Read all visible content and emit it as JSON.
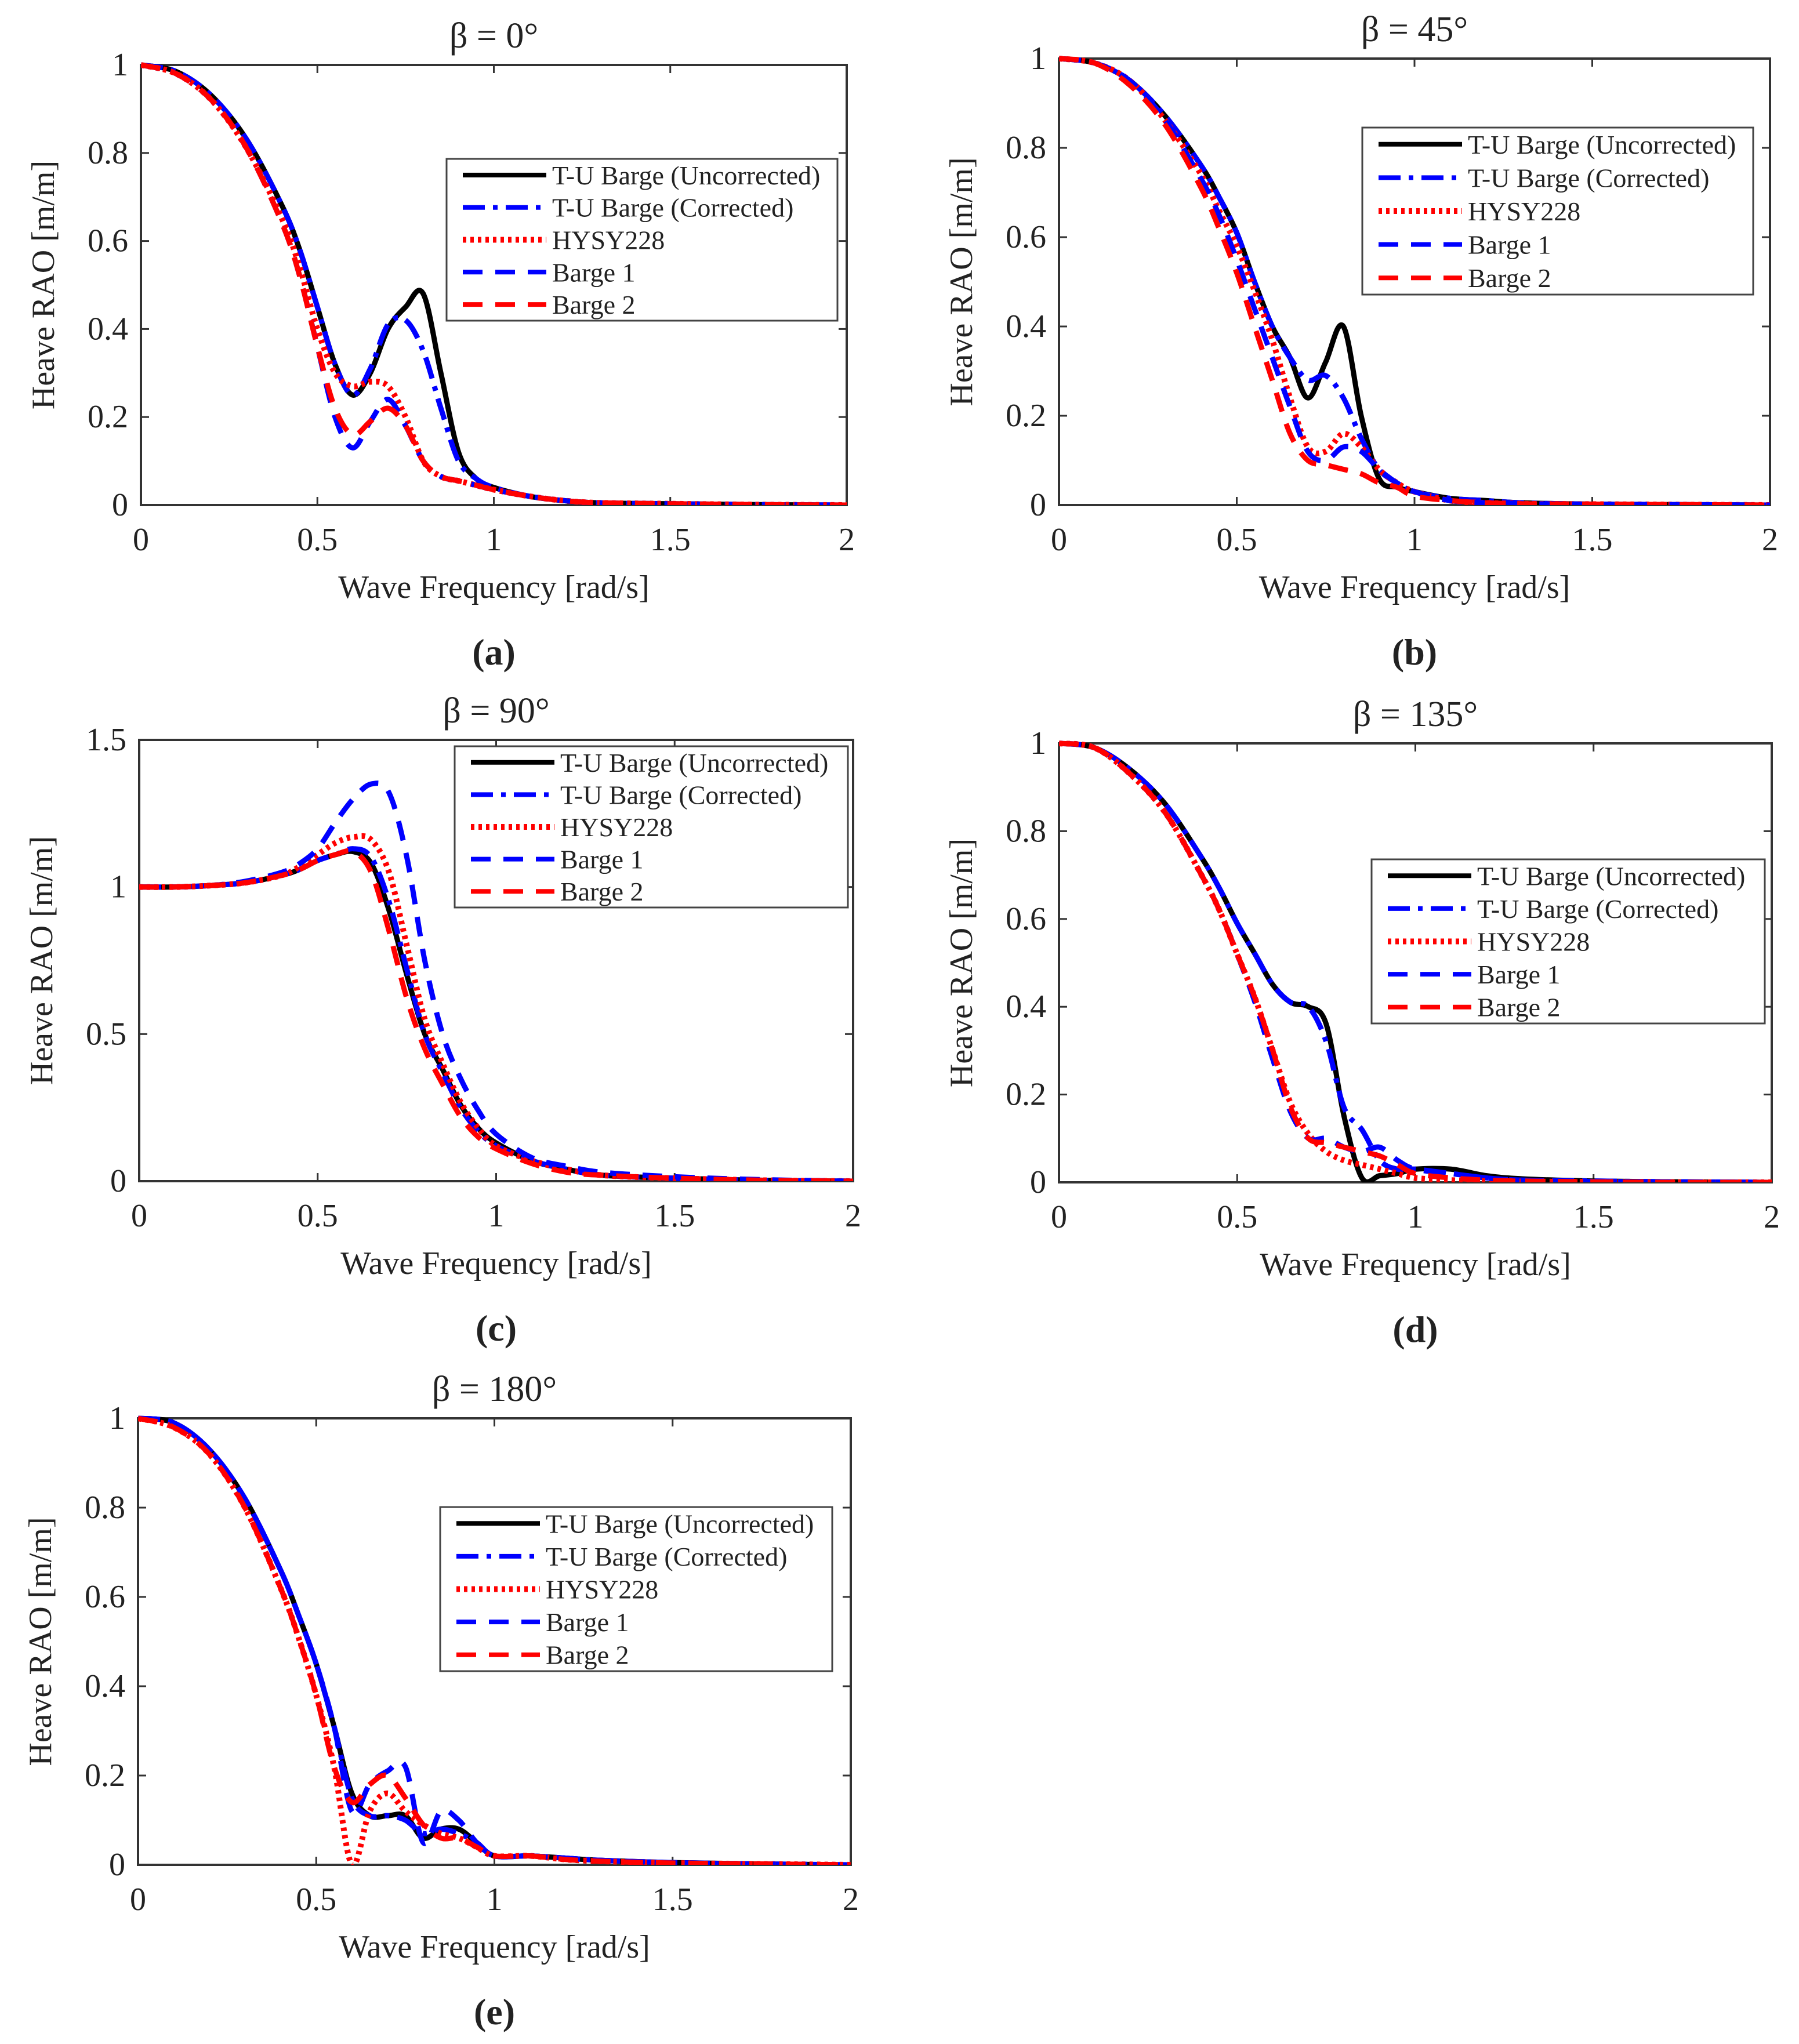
{
  "x_common": [
    0,
    0.1,
    0.2,
    0.3,
    0.4,
    0.45,
    0.5,
    0.55,
    0.6,
    0.65,
    0.7,
    0.75,
    0.8,
    0.85,
    0.9,
    0.95,
    1.0,
    1.1,
    1.2,
    1.3,
    1.5,
    1.75,
    2.0
  ],
  "styles": {
    "T-U Barge (Uncorrected)": {
      "color": "#000000",
      "dash": "solid"
    },
    "T-U Barge (Corrected)": {
      "color": "#0000ff",
      "dash": "dash-dot"
    },
    "HYSY228": {
      "color": "#ff0000",
      "dash": "dotted"
    },
    "Barge 1": {
      "color": "#0000ff",
      "dash": "dashed"
    },
    "Barge 2": {
      "color": "#ff0000",
      "dash": "dashed"
    }
  },
  "chart_data": [
    {
      "type": "line",
      "panel_label": "(a)",
      "title": "β = 0°",
      "xlabel": "Wave Frequency [rad/s]",
      "ylabel": "Heave RAO [m/m]",
      "xlim": [
        0,
        2
      ],
      "ylim": [
        0,
        1
      ],
      "xticks": [
        "0",
        "0.5",
        "1",
        "1.5",
        "2"
      ],
      "yticks": [
        "0",
        "0.2",
        "0.4",
        "0.6",
        "0.8",
        "1"
      ],
      "legend": "top-right",
      "grid": false,
      "series": [
        {
          "name": "T-U Barge (Uncorrected)",
          "values": [
            1,
            0.985,
            0.93,
            0.83,
            0.68,
            0.58,
            0.45,
            0.32,
            0.25,
            0.3,
            0.4,
            0.45,
            0.48,
            0.3,
            0.12,
            0.06,
            0.04,
            0.02,
            0.01,
            0.005,
            0.003,
            0.001,
            0
          ]
        },
        {
          "name": "T-U Barge (Corrected)",
          "values": [
            1,
            0.985,
            0.93,
            0.83,
            0.68,
            0.58,
            0.45,
            0.32,
            0.25,
            0.31,
            0.41,
            0.42,
            0.35,
            0.22,
            0.1,
            0.06,
            0.04,
            0.02,
            0.01,
            0.005,
            0.003,
            0.001,
            0
          ]
        },
        {
          "name": "HYSY228",
          "values": [
            1,
            0.98,
            0.92,
            0.81,
            0.65,
            0.54,
            0.4,
            0.3,
            0.27,
            0.28,
            0.27,
            0.2,
            0.1,
            0.065,
            0.055,
            0.045,
            0.035,
            0.02,
            0.01,
            0.005,
            0.003,
            0.001,
            0
          ]
        },
        {
          "name": "Barge 1",
          "values": [
            1,
            0.98,
            0.92,
            0.81,
            0.64,
            0.52,
            0.36,
            0.2,
            0.13,
            0.19,
            0.24,
            0.18,
            0.1,
            0.065,
            0.055,
            0.045,
            0.035,
            0.02,
            0.01,
            0.005,
            0.003,
            0.001,
            0
          ]
        },
        {
          "name": "Barge 2",
          "values": [
            1,
            0.98,
            0.92,
            0.81,
            0.64,
            0.52,
            0.36,
            0.22,
            0.16,
            0.19,
            0.22,
            0.18,
            0.1,
            0.065,
            0.055,
            0.045,
            0.035,
            0.02,
            0.01,
            0.005,
            0.003,
            0.001,
            0
          ]
        }
      ]
    },
    {
      "type": "line",
      "panel_label": "(b)",
      "title": "β = 45°",
      "xlabel": "Wave Frequency [rad/s]",
      "ylabel": "Heave RAO [m/m]",
      "xlim": [
        0,
        2
      ],
      "ylim": [
        0,
        1
      ],
      "xticks": [
        "0",
        "0.5",
        "1",
        "1.5",
        "2"
      ],
      "yticks": [
        "0",
        "0.2",
        "0.4",
        "0.6",
        "0.8",
        "1"
      ],
      "legend": "top-right",
      "grid": false,
      "series": [
        {
          "name": "T-U Barge (Uncorrected)",
          "values": [
            1,
            0.99,
            0.95,
            0.87,
            0.76,
            0.69,
            0.61,
            0.5,
            0.4,
            0.33,
            0.24,
            0.32,
            0.4,
            0.2,
            0.06,
            0.04,
            0.03,
            0.015,
            0.01,
            0.005,
            0.002,
            0.001,
            0
          ]
        },
        {
          "name": "T-U Barge (Corrected)",
          "values": [
            1,
            0.99,
            0.95,
            0.87,
            0.76,
            0.69,
            0.61,
            0.5,
            0.4,
            0.33,
            0.28,
            0.29,
            0.24,
            0.15,
            0.08,
            0.05,
            0.03,
            0.015,
            0.01,
            0.005,
            0.002,
            0.001,
            0
          ]
        },
        {
          "name": "HYSY228",
          "values": [
            1,
            0.99,
            0.95,
            0.86,
            0.74,
            0.66,
            0.58,
            0.48,
            0.37,
            0.24,
            0.13,
            0.12,
            0.16,
            0.13,
            0.08,
            0.05,
            0.03,
            0.01,
            0.005,
            0.003,
            0.002,
            0.001,
            0
          ]
        },
        {
          "name": "Barge 1",
          "values": [
            1,
            0.99,
            0.95,
            0.86,
            0.73,
            0.65,
            0.55,
            0.44,
            0.33,
            0.22,
            0.12,
            0.1,
            0.13,
            0.12,
            0.08,
            0.05,
            0.03,
            0.01,
            0.005,
            0.003,
            0.002,
            0.001,
            0
          ]
        },
        {
          "name": "Barge 2",
          "values": [
            1,
            0.99,
            0.94,
            0.85,
            0.71,
            0.62,
            0.52,
            0.4,
            0.28,
            0.16,
            0.1,
            0.09,
            0.08,
            0.07,
            0.05,
            0.04,
            0.02,
            0.01,
            0.005,
            0.003,
            0.002,
            0.001,
            0
          ]
        }
      ]
    },
    {
      "type": "line",
      "panel_label": "(c)",
      "title": "β = 90°",
      "xlabel": "Wave Frequency [rad/s]",
      "ylabel": "Heave RAO [m/m]",
      "xlim": [
        0,
        2
      ],
      "ylim": [
        0,
        1.5
      ],
      "xticks": [
        "0",
        "0.5",
        "1",
        "1.5",
        "2"
      ],
      "yticks": [
        "0",
        "0.5",
        "1",
        "1.5"
      ],
      "legend": "top-right",
      "grid": false,
      "series": [
        {
          "name": "T-U Barge (Uncorrected)",
          "values": [
            1,
            1,
            1.005,
            1.015,
            1.04,
            1.06,
            1.09,
            1.11,
            1.12,
            1.08,
            0.92,
            0.7,
            0.5,
            0.38,
            0.26,
            0.18,
            0.13,
            0.07,
            0.04,
            0.02,
            0.01,
            0.003,
            0
          ]
        },
        {
          "name": "T-U Barge (Corrected)",
          "values": [
            1,
            1,
            1.005,
            1.015,
            1.04,
            1.06,
            1.09,
            1.11,
            1.13,
            1.1,
            0.95,
            0.72,
            0.5,
            0.37,
            0.25,
            0.17,
            0.12,
            0.07,
            0.04,
            0.02,
            0.01,
            0.003,
            0
          ]
        },
        {
          "name": "HYSY228",
          "values": [
            1,
            1,
            1.005,
            1.015,
            1.04,
            1.07,
            1.11,
            1.15,
            1.17,
            1.16,
            1.05,
            0.8,
            0.55,
            0.4,
            0.27,
            0.18,
            0.12,
            0.07,
            0.04,
            0.02,
            0.01,
            0.003,
            0
          ]
        },
        {
          "name": "Barge 1",
          "values": [
            1,
            1,
            1.005,
            1.02,
            1.05,
            1.08,
            1.13,
            1.22,
            1.3,
            1.35,
            1.32,
            1.1,
            0.75,
            0.5,
            0.35,
            0.24,
            0.16,
            0.08,
            0.05,
            0.03,
            0.015,
            0.005,
            0
          ]
        },
        {
          "name": "Barge 2",
          "values": [
            1,
            1,
            1.005,
            1.015,
            1.04,
            1.06,
            1.09,
            1.11,
            1.12,
            1.05,
            0.85,
            0.62,
            0.45,
            0.33,
            0.22,
            0.15,
            0.11,
            0.06,
            0.03,
            0.02,
            0.01,
            0.003,
            0
          ]
        }
      ]
    },
    {
      "type": "line",
      "panel_label": "(d)",
      "title": "β = 135°",
      "xlabel": "Wave Frequency [rad/s]",
      "ylabel": "Heave RAO [m/m]",
      "xlim": [
        0,
        2
      ],
      "ylim": [
        0,
        1
      ],
      "xticks": [
        "0",
        "0.5",
        "1",
        "1.5",
        "2"
      ],
      "yticks": [
        "0",
        "0.2",
        "0.4",
        "0.6",
        "0.8",
        "1"
      ],
      "legend": "right",
      "grid": false,
      "series": [
        {
          "name": "T-U Barge (Uncorrected)",
          "values": [
            1,
            0.99,
            0.94,
            0.86,
            0.74,
            0.67,
            0.59,
            0.52,
            0.45,
            0.41,
            0.4,
            0.36,
            0.15,
            0.01,
            0.015,
            0.02,
            0.03,
            0.03,
            0.015,
            0.008,
            0.003,
            0.001,
            0
          ]
        },
        {
          "name": "T-U Barge (Corrected)",
          "values": [
            1,
            0.99,
            0.94,
            0.86,
            0.74,
            0.67,
            0.59,
            0.52,
            0.45,
            0.41,
            0.4,
            0.32,
            0.17,
            0.12,
            0.05,
            0.03,
            0.03,
            0.02,
            0.01,
            0.005,
            0.003,
            0.001,
            0
          ]
        },
        {
          "name": "HYSY228",
          "values": [
            1,
            0.99,
            0.93,
            0.84,
            0.7,
            0.62,
            0.52,
            0.42,
            0.3,
            0.18,
            0.11,
            0.07,
            0.05,
            0.04,
            0.03,
            0.02,
            0.01,
            0.005,
            0.003,
            0.002,
            0.001,
            0,
            0
          ]
        },
        {
          "name": "Barge 1",
          "values": [
            1,
            0.99,
            0.93,
            0.84,
            0.7,
            0.62,
            0.52,
            0.41,
            0.28,
            0.16,
            0.1,
            0.1,
            0.08,
            0.07,
            0.08,
            0.05,
            0.03,
            0.02,
            0.01,
            0.005,
            0.002,
            0.001,
            0
          ]
        },
        {
          "name": "Barge 2",
          "values": [
            1,
            0.99,
            0.93,
            0.84,
            0.7,
            0.62,
            0.52,
            0.42,
            0.3,
            0.17,
            0.1,
            0.09,
            0.08,
            0.07,
            0.06,
            0.04,
            0.02,
            0.01,
            0.005,
            0.003,
            0.001,
            0,
            0
          ]
        }
      ]
    },
    {
      "type": "line",
      "panel_label": "(e)",
      "title": "β = 180°",
      "xlabel": "Wave Frequency [rad/s]",
      "ylabel": "Heave RAO [m/m]",
      "xlim": [
        0,
        2
      ],
      "ylim": [
        0,
        1
      ],
      "xticks": [
        "0",
        "0.5",
        "1",
        "1.5",
        "2"
      ],
      "yticks": [
        "0",
        "0.2",
        "0.4",
        "0.6",
        "0.8",
        "1"
      ],
      "legend": "top-right",
      "grid": false,
      "series": [
        {
          "name": "T-U Barge (Uncorrected)",
          "values": [
            1,
            0.99,
            0.93,
            0.82,
            0.66,
            0.56,
            0.45,
            0.31,
            0.16,
            0.11,
            0.11,
            0.11,
            0.06,
            0.08,
            0.08,
            0.05,
            0.02,
            0.02,
            0.015,
            0.01,
            0.005,
            0.002,
            0
          ]
        },
        {
          "name": "T-U Barge (Corrected)",
          "values": [
            1,
            0.99,
            0.93,
            0.82,
            0.66,
            0.56,
            0.45,
            0.31,
            0.15,
            0.11,
            0.11,
            0.1,
            0.07,
            0.08,
            0.07,
            0.05,
            0.02,
            0.02,
            0.015,
            0.01,
            0.005,
            0.002,
            0
          ]
        },
        {
          "name": "HYSY228",
          "values": [
            1,
            0.98,
            0.92,
            0.8,
            0.62,
            0.51,
            0.38,
            0.22,
            0,
            0.12,
            0.16,
            0.12,
            0.09,
            0.07,
            0.06,
            0.04,
            0.02,
            0.02,
            0.012,
            0.008,
            0.004,
            0.002,
            0
          ]
        },
        {
          "name": "Barge 1",
          "values": [
            1,
            0.99,
            0.93,
            0.82,
            0.66,
            0.56,
            0.45,
            0.31,
            0.12,
            0.18,
            0.21,
            0.22,
            0.05,
            0.12,
            0.1,
            0.05,
            0.02,
            0.02,
            0.015,
            0.01,
            0.005,
            0.002,
            0
          ]
        },
        {
          "name": "Barge 2",
          "values": [
            1,
            0.98,
            0.92,
            0.8,
            0.62,
            0.51,
            0.38,
            0.22,
            0.14,
            0.18,
            0.2,
            0.15,
            0.09,
            0.06,
            0.06,
            0.04,
            0.02,
            0.02,
            0.012,
            0.008,
            0.004,
            0.002,
            0
          ]
        }
      ]
    }
  ]
}
